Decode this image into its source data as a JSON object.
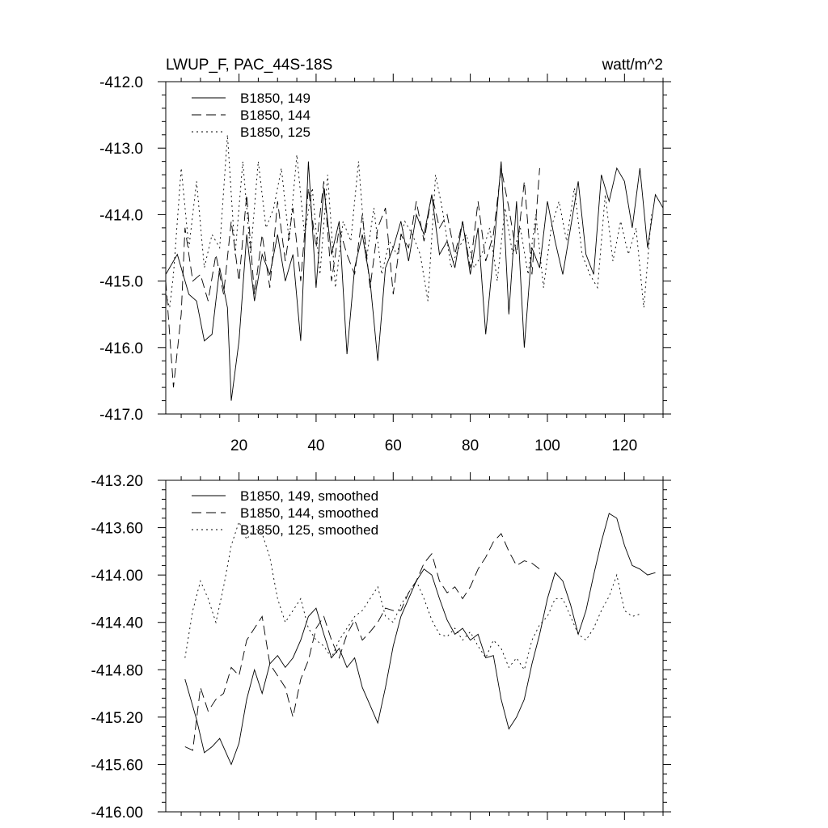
{
  "chart_data": [
    {
      "type": "line",
      "title": "LWUP_F, PAC_44S-18S",
      "units": "watt/m^2",
      "xlim": [
        1,
        130
      ],
      "ylim": [
        -417.0,
        -412.0
      ],
      "xticks": [
        20,
        40,
        60,
        80,
        100,
        120
      ],
      "xtick_labels": [
        "20",
        "40",
        "60",
        "80",
        "100",
        "120"
      ],
      "yticks": [
        -417.0,
        -416.0,
        -415.0,
        -414.0,
        -413.0,
        -412.0
      ],
      "ytick_labels": [
        "-417.0",
        "-416.0",
        "-415.0",
        "-414.0",
        "-413.0",
        "-412.0"
      ],
      "legend_position": "top-left",
      "grid": false,
      "series": [
        {
          "name": "B1850, 149",
          "style": "solid",
          "x": [
            1,
            4,
            7,
            9,
            11,
            13,
            15,
            17,
            18,
            20,
            22,
            24,
            26,
            28,
            30,
            32,
            34,
            36,
            38,
            40,
            42,
            44,
            46,
            48,
            50,
            52,
            54,
            56,
            58,
            60,
            62,
            64,
            66,
            68,
            70,
            72,
            74,
            76,
            78,
            80,
            82,
            84,
            86,
            88,
            90,
            92,
            94,
            96,
            98,
            100,
            102,
            104,
            106,
            108,
            110,
            112,
            114,
            116,
            118,
            120,
            122,
            124,
            126,
            128,
            130
          ],
          "values": [
            -414.9,
            -414.6,
            -415.2,
            -415.3,
            -415.9,
            -415.8,
            -414.8,
            -415.4,
            -416.8,
            -415.9,
            -414.3,
            -415.3,
            -414.6,
            -414.9,
            -414.3,
            -415.0,
            -414.6,
            -415.9,
            -413.2,
            -415.1,
            -413.6,
            -414.6,
            -414.1,
            -416.1,
            -414.8,
            -414.3,
            -415.0,
            -416.2,
            -414.8,
            -414.5,
            -414.1,
            -414.7,
            -414.0,
            -414.3,
            -413.7,
            -414.6,
            -414.4,
            -414.8,
            -414.1,
            -414.9,
            -414.2,
            -415.8,
            -414.6,
            -413.2,
            -415.5,
            -413.8,
            -416.0,
            -414.5,
            -414.8,
            -413.8,
            -414.4,
            -414.9,
            -414.2,
            -413.5,
            -414.6,
            -414.9,
            -413.4,
            -413.8,
            -413.3,
            -413.5,
            -414.2,
            -413.3,
            -414.5,
            -413.7,
            -413.9
          ]
        },
        {
          "name": "B1850, 144",
          "style": "dashed",
          "x": [
            1,
            2,
            3,
            5,
            6,
            8,
            10,
            12,
            14,
            16,
            18,
            20,
            22,
            24,
            26,
            28,
            30,
            32,
            34,
            36,
            38,
            40,
            42,
            44,
            46,
            48,
            50,
            52,
            54,
            56,
            58,
            60,
            62,
            64,
            66,
            68,
            70,
            72,
            74,
            76,
            78,
            80,
            82,
            84,
            86,
            88,
            90,
            92,
            94,
            96,
            98
          ],
          "values": [
            -415.0,
            -415.8,
            -416.6,
            -415.5,
            -414.2,
            -415.0,
            -414.9,
            -415.3,
            -414.6,
            -415.2,
            -414.1,
            -415.0,
            -413.7,
            -415.2,
            -414.3,
            -415.1,
            -413.8,
            -414.7,
            -413.9,
            -415.0,
            -413.6,
            -414.5,
            -413.5,
            -415.0,
            -414.2,
            -414.6,
            -414.9,
            -414.0,
            -415.1,
            -414.2,
            -413.9,
            -415.2,
            -414.3,
            -414.5,
            -413.8,
            -414.4,
            -413.7,
            -414.2,
            -414.0,
            -414.6,
            -414.1,
            -414.8,
            -413.8,
            -414.7,
            -414.3,
            -413.3,
            -413.9,
            -414.6,
            -413.5,
            -414.9,
            -413.3
          ]
        },
        {
          "name": "B1850, 125",
          "style": "dotted",
          "x": [
            1,
            2,
            3,
            5,
            7,
            9,
            11,
            13,
            15,
            17,
            19,
            21,
            23,
            25,
            27,
            29,
            31,
            33,
            35,
            37,
            39,
            41,
            43,
            45,
            47,
            49,
            51,
            53,
            55,
            57,
            59,
            61,
            63,
            65,
            67,
            69,
            71,
            73,
            75,
            77,
            79,
            81,
            83,
            85,
            87,
            89,
            91,
            93,
            95,
            97,
            99,
            101,
            103,
            105,
            107,
            109,
            111,
            113,
            115,
            117,
            119,
            121,
            123,
            125,
            127
          ],
          "values": [
            -415.2,
            -415.4,
            -414.9,
            -413.3,
            -414.5,
            -413.5,
            -414.8,
            -414.3,
            -414.5,
            -412.8,
            -414.6,
            -413.2,
            -414.6,
            -413.2,
            -414.2,
            -413.9,
            -413.3,
            -414.4,
            -413.1,
            -414.3,
            -413.6,
            -414.9,
            -413.4,
            -415.1,
            -414.1,
            -414.4,
            -413.2,
            -414.7,
            -413.9,
            -414.9,
            -414.4,
            -414.6,
            -414.1,
            -414.3,
            -414.6,
            -415.3,
            -413.4,
            -414.0,
            -414.8,
            -414.5,
            -414.3,
            -414.8,
            -414.6,
            -414.2,
            -415.0,
            -413.9,
            -414.6,
            -414.2,
            -414.9,
            -414.0,
            -415.1,
            -414.2,
            -413.8,
            -414.4,
            -413.6,
            -414.6,
            -414.9,
            -415.1,
            -413.7,
            -414.7,
            -414.1,
            -414.6,
            -414.2,
            -415.4,
            -414.0
          ]
        }
      ]
    },
    {
      "type": "line",
      "xlim": [
        1,
        130
      ],
      "ylim": [
        -416.0,
        -413.2
      ],
      "xticks": [
        20,
        40,
        60,
        80,
        100,
        120
      ],
      "yticks": [
        -416.0,
        -415.6,
        -415.2,
        -414.8,
        -414.4,
        -414.0,
        -413.6,
        -413.2
      ],
      "ytick_labels": [
        "-416.00",
        "-415.60",
        "-415.20",
        "-414.80",
        "-414.40",
        "-414.00",
        "-413.60",
        "-413.20"
      ],
      "legend_position": "top-left",
      "grid": false,
      "series": [
        {
          "name": "B1850, 149, smoothed",
          "style": "solid",
          "x": [
            6,
            9,
            11,
            13,
            15,
            18,
            20,
            22,
            24,
            26,
            28,
            30,
            32,
            34,
            36,
            38,
            40,
            42,
            44,
            46,
            48,
            50,
            52,
            54,
            56,
            58,
            60,
            62,
            64,
            66,
            68,
            70,
            72,
            74,
            76,
            78,
            80,
            82,
            84,
            86,
            88,
            90,
            92,
            94,
            96,
            98,
            100,
            102,
            104,
            106,
            108,
            110,
            112,
            114,
            116,
            118,
            120,
            122,
            124,
            126,
            128
          ],
          "values": [
            -414.88,
            -415.22,
            -415.5,
            -415.45,
            -415.38,
            -415.6,
            -415.42,
            -415.05,
            -414.8,
            -415.0,
            -414.75,
            -414.68,
            -414.78,
            -414.7,
            -414.55,
            -414.35,
            -414.28,
            -414.5,
            -414.7,
            -414.62,
            -414.78,
            -414.7,
            -414.95,
            -415.1,
            -415.25,
            -414.95,
            -414.6,
            -414.35,
            -414.2,
            -414.05,
            -413.95,
            -414.0,
            -414.2,
            -414.38,
            -414.5,
            -414.45,
            -414.55,
            -414.5,
            -414.7,
            -414.68,
            -415.05,
            -415.3,
            -415.2,
            -415.05,
            -414.75,
            -414.5,
            -414.2,
            -413.98,
            -414.05,
            -414.25,
            -414.5,
            -414.3,
            -414.0,
            -413.72,
            -413.48,
            -413.52,
            -413.75,
            -413.92,
            -413.95,
            -414.0,
            -413.98
          ]
        },
        {
          "name": "B1850, 144, smoothed",
          "style": "dashed",
          "x": [
            6,
            8,
            10,
            12,
            14,
            16,
            18,
            20,
            22,
            24,
            26,
            28,
            30,
            32,
            34,
            36,
            38,
            40,
            42,
            44,
            46,
            48,
            50,
            52,
            54,
            56,
            58,
            60,
            62,
            64,
            66,
            68,
            70,
            72,
            74,
            76,
            78,
            80,
            82,
            84,
            86,
            88,
            90,
            92,
            94,
            96,
            98
          ],
          "values": [
            -415.45,
            -415.48,
            -414.95,
            -415.15,
            -415.05,
            -415.0,
            -414.78,
            -414.85,
            -414.55,
            -414.45,
            -414.35,
            -414.75,
            -414.85,
            -414.95,
            -415.2,
            -414.88,
            -414.72,
            -414.45,
            -414.35,
            -414.55,
            -414.7,
            -414.5,
            -414.38,
            -414.55,
            -414.48,
            -414.4,
            -414.28,
            -414.3,
            -414.3,
            -414.15,
            -414.05,
            -413.9,
            -413.82,
            -414.05,
            -414.15,
            -414.1,
            -414.2,
            -414.1,
            -413.95,
            -413.85,
            -413.72,
            -413.65,
            -413.8,
            -413.92,
            -413.88,
            -413.9,
            -413.95
          ]
        },
        {
          "name": "B1850, 125, smoothed",
          "style": "dotted",
          "x": [
            6,
            8,
            10,
            12,
            14,
            16,
            18,
            20,
            22,
            24,
            26,
            28,
            30,
            32,
            34,
            36,
            38,
            40,
            42,
            44,
            46,
            48,
            50,
            52,
            54,
            56,
            58,
            60,
            62,
            64,
            66,
            68,
            70,
            72,
            74,
            76,
            78,
            80,
            82,
            84,
            86,
            88,
            90,
            92,
            94,
            96,
            98,
            100,
            102,
            104,
            106,
            108,
            110,
            112,
            114,
            116,
            118,
            120,
            122,
            124
          ],
          "values": [
            -414.7,
            -414.3,
            -414.05,
            -414.2,
            -414.4,
            -414.1,
            -413.75,
            -413.55,
            -413.7,
            -413.6,
            -413.65,
            -413.85,
            -414.2,
            -414.4,
            -414.3,
            -414.2,
            -414.45,
            -414.55,
            -414.6,
            -414.7,
            -414.55,
            -414.45,
            -414.35,
            -414.3,
            -414.2,
            -414.1,
            -414.35,
            -414.4,
            -414.25,
            -414.15,
            -414.05,
            -414.2,
            -414.38,
            -414.5,
            -414.52,
            -414.45,
            -414.55,
            -414.48,
            -414.6,
            -414.7,
            -414.55,
            -414.62,
            -414.78,
            -414.7,
            -414.8,
            -414.55,
            -414.42,
            -414.35,
            -414.2,
            -414.2,
            -414.35,
            -414.5,
            -414.55,
            -414.45,
            -414.3,
            -414.18,
            -414.0,
            -414.3,
            -414.35,
            -414.33
          ]
        }
      ]
    }
  ]
}
